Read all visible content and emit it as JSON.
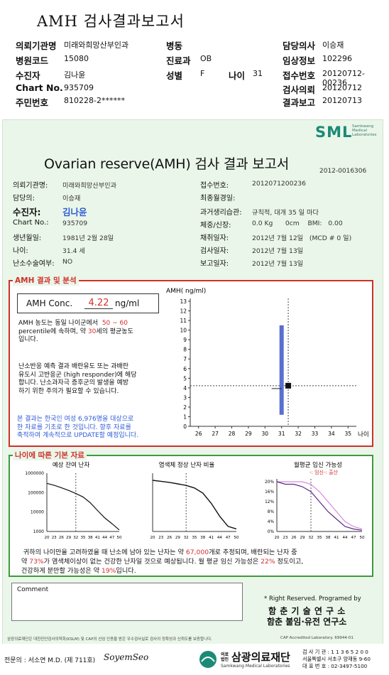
{
  "header": {
    "title": "AMH 검사결과보고서",
    "rows": [
      {
        "l1": "의뢰기관명",
        "v1": "미래와희망산부인과",
        "l2": "병동",
        "v2": "",
        "l3": "담당의사",
        "v3": "이승재"
      },
      {
        "l1": "병원코드",
        "v1": "15080",
        "l2": "진료과",
        "v2": "OB",
        "l3": "임상정보",
        "v3": "102296"
      },
      {
        "l1": "수진자",
        "v1": "김나윤",
        "l2": "성별",
        "v2": "F",
        "l2b": "나이",
        "v2b": "31",
        "l3": "접수번호",
        "v3": "20120712-00236"
      },
      {
        "l1": "Chart No.",
        "v1": "935709",
        "l3": "검사의뢰",
        "v3": "20120712"
      },
      {
        "l1": "주민번호",
        "v1": "810228-2******",
        "l3": "결과보고",
        "v3": "20120713"
      }
    ]
  },
  "logo": {
    "text": "SML",
    "sub1": "Samkwang",
    "sub2": "Medical",
    "sub3": "Laboratories"
  },
  "report": {
    "title": "Ovarian reserve(AMH) 검사 결과 보고서",
    "number": "2012-0016306",
    "left": [
      {
        "label": "의뢰기관명:",
        "value": "미래와희망산부인과"
      },
      {
        "label": "담당의:",
        "value": "이승재"
      },
      {
        "label": "수진자:",
        "value": "김나윤"
      },
      {
        "label": "Chart No.:",
        "value": "935709"
      },
      {
        "label": "생년월일:",
        "value": "1981년 2월 28일"
      },
      {
        "label": "나이:",
        "value": "31.4 세"
      },
      {
        "label": "난소수술여부:",
        "value": "NO"
      }
    ],
    "right": [
      {
        "label": "접수번호:",
        "value": "2012071200236"
      },
      {
        "label": "최종월경일:",
        "value": ""
      },
      {
        "label": "과거생리습관:",
        "value": "규칙적, 대개   35 일 마다"
      },
      {
        "label": "체중/신장:",
        "value": "0.0 Kg      0cm    BMI:   0.00"
      },
      {
        "label": "채취일자:",
        "value": "2012년 7월 12일   (MCD # 0 일)"
      },
      {
        "label": "검사일자:",
        "value": "2012년 7월 13일"
      },
      {
        "label": "보고일자:",
        "value": "2012년 7월 13일"
      }
    ]
  },
  "amh": {
    "section_title": "AMH 결과 및 분석",
    "conc_label": "AMH Conc.",
    "conc_value": "4.22",
    "conc_unit": "ng/ml",
    "p1a": "AMH 농도는 동일 나이군에서",
    "p1range": "50 ~ 60",
    "p1b": "percentile에 속하며, 약",
    "p1age": "30",
    "p1c": "세의 평균농도",
    "p1d": "입니다.",
    "p2": [
      "난소반응 예측 결과 배란유도 또는 과배란",
      "유도시 고반응군 (high responder)에 해당",
      "합니다. 난소과자극 증후군의 발생을 예방",
      "하기 위한 주의가 필요할 수 있습니다."
    ],
    "p3": [
      "본 결과는 한국인 여성 6,976명을 대상으로",
      "한 자료를 기초로 한 것입니다. 향후 자료를",
      "축적하여 계속적으로 UPDATE할 예정입니다."
    ]
  },
  "chart_data": [
    {
      "type": "scatter",
      "title": "",
      "ylabel": "AMH( ng/ml)",
      "xlabel": "나이",
      "x_ticks": [
        26,
        27,
        28,
        29,
        30,
        31,
        32,
        33,
        34,
        35
      ],
      "ylim": [
        0,
        13
      ],
      "point": {
        "x": 31.4,
        "y": 4.22
      },
      "range_bar": {
        "x": 31.0,
        "low": 1.2,
        "high": 10.5
      },
      "ref_line_y": 4.22,
      "ref_line_x": 31.4
    },
    {
      "type": "line",
      "title": "예상 잔여 난자",
      "x_ticks": [
        20,
        23,
        26,
        29,
        32,
        35,
        38,
        41,
        44,
        47,
        50
      ],
      "y_ticks": [
        1000,
        10000,
        100000,
        1000000
      ],
      "y_scale": "log",
      "x": [
        20,
        23,
        26,
        29,
        32,
        35,
        38,
        41,
        44,
        47,
        50
      ],
      "values": [
        300000,
        240000,
        180000,
        130000,
        90000,
        60000,
        30000,
        12000,
        5000,
        2500,
        1200
      ]
    },
    {
      "type": "line",
      "title": "염색체 정상 난자 비율",
      "x_ticks": [
        20,
        23,
        26,
        29,
        32,
        35,
        38,
        41,
        44,
        47,
        50
      ],
      "x": [
        20,
        23,
        26,
        29,
        32,
        35,
        38,
        41,
        44,
        47,
        50
      ],
      "values": [
        1.0,
        0.98,
        0.96,
        0.93,
        0.9,
        0.85,
        0.75,
        0.55,
        0.3,
        0.1,
        0.05
      ]
    },
    {
      "type": "line",
      "title": "월평균 임신 가능성",
      "legend": "-: 임신-: 출산",
      "x_ticks": [
        20,
        23,
        26,
        29,
        32,
        35,
        38,
        41,
        44,
        47,
        50
      ],
      "y_ticks": [
        "0%",
        "4%",
        "8%",
        "12%",
        "16%",
        "20%"
      ],
      "x": [
        20,
        23,
        26,
        29,
        32,
        35,
        38,
        41,
        44,
        47,
        50
      ],
      "series": [
        {
          "values": [
            20,
            20,
            20,
            20,
            19,
            16,
            12,
            8,
            4,
            2,
            1
          ]
        },
        {
          "values": [
            20,
            19,
            19,
            18,
            16,
            12,
            8,
            5,
            2,
            1,
            0.5
          ]
        }
      ]
    }
  ],
  "basic": {
    "section_title": "나이에 따른 기본 자료",
    "eggs": "67,000",
    "normal": "73%",
    "monthly": "22%",
    "birth": "19%",
    "s1a": "귀하의 나이만을 고려하였을 때 난소에 남아 있는 난자는 약",
    "s1b": "개로 추정되며, 배란되는 난자 중",
    "s2a": "약",
    "s2b": "가 염색체이상이 없는 건강한 난자일 것으로 예상됩니다. 월 평균 임신 가능성은",
    "s2c": "정도이고,",
    "s3a": "건강하게 분만할 가능성은 약",
    "s3b": "입니다."
  },
  "comment": {
    "label": "Comment"
  },
  "footer": {
    "rights": "* Right Reserved. Programed by",
    "inst1": "함 춘  기 술  연 구 소",
    "inst2": "함춘 불임·유전 연구소",
    "cert": "삼광의료재단은 대한진단검사의학회(KSLM) 및 CAP의 신임 인증을 받은 우수검사실로 검사의 정확성과 신뢰도를 보증합니다.",
    "cap": "CAP  Accredited  Laboratory.  69944-01",
    "doctor": "전문의 : 서소연 M.D. (제 711호)",
    "signature": "SoyemSeo",
    "found_small": "의료법인",
    "found": "삼광의료재단",
    "found_en": "Samkwang Medical Laboratories",
    "addr1": "검 사 기 관 : 1 1 3 6 5 2 0 0",
    "addr2": "서울특별시 서초구 양재동 9-60",
    "addr3": "대 표 번 호 : 02-3497-5100"
  }
}
